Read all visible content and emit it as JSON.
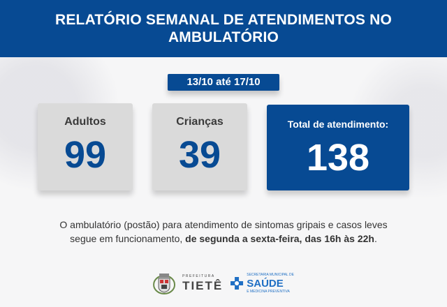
{
  "header": {
    "title_line1": "RELATÓRIO SEMANAL DE ATENDIMENTOS NO",
    "title_line2": "AMBULATÓRIO"
  },
  "period": "13/10 até 17/10",
  "cards": [
    {
      "label": "Adultos",
      "value": "99"
    },
    {
      "label": "Crianças",
      "value": "39"
    },
    {
      "label": "Total de atendimento:",
      "value": "138"
    }
  ],
  "description": {
    "line1": "O ambulatório (postão) para atendimento de sintomas gripais e casos leves",
    "line2_prefix": "segue em funcionamento, ",
    "line2_bold": "de segunda a sexta-feira, das 16h às 22h",
    "line2_suffix": "."
  },
  "logos": {
    "prefeitura_small": "PREFEITURA",
    "prefeitura_name": "TIETÊ",
    "saude_top": "SECRETARIA MUNICIPAL DE",
    "saude_name": "SAÚDE",
    "saude_bottom": "E MEDICINA PREVENTIVA"
  },
  "colors": {
    "brand_blue": "#074a93",
    "card_grey": "#dadada",
    "saude_blue": "#1f6fc4"
  }
}
